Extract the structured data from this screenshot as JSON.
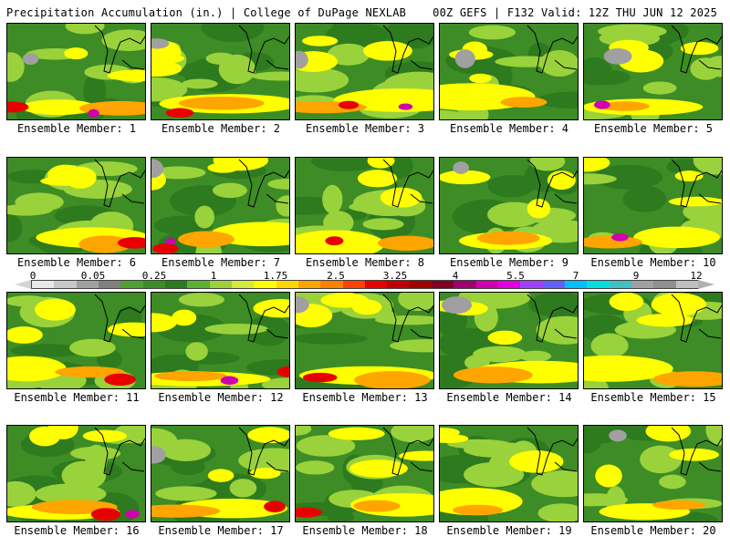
{
  "header": {
    "left": "Precipitation Accumulation (in.) | College of DuPage NEXLAB",
    "right": "00Z GEFS | F132 Valid: 12Z THU JUN 12 2025"
  },
  "members": [
    "Ensemble Member: 1",
    "Ensemble Member: 2",
    "Ensemble Member: 3",
    "Ensemble Member: 4",
    "Ensemble Member: 5",
    "Ensemble Member: 6",
    "Ensemble Member: 7",
    "Ensemble Member: 8",
    "Ensemble Member: 9",
    "Ensemble Member: 10",
    "Ensemble Member: 11",
    "Ensemble Member: 12",
    "Ensemble Member: 13",
    "Ensemble Member: 14",
    "Ensemble Member: 15",
    "Ensemble Member: 16",
    "Ensemble Member: 17",
    "Ensemble Member: 18",
    "Ensemble Member: 19",
    "Ensemble Member: 20"
  ],
  "colorbar": {
    "labels": [
      "0",
      "0.05",
      "0.25",
      "1",
      "1.75",
      "2.5",
      "3.25",
      "4",
      "5.5",
      "7",
      "9",
      "12"
    ],
    "colors": [
      "#e8e8e8",
      "#c8c8c8",
      "#a0a0a0",
      "#808080",
      "#50a030",
      "#3d8c25",
      "#2e7a1e",
      "#5cb030",
      "#9ad23c",
      "#d6ea3c",
      "#ffff00",
      "#ffd700",
      "#ffa500",
      "#ff8000",
      "#ff4000",
      "#e80000",
      "#c00000",
      "#a00000",
      "#800020",
      "#a0006e",
      "#d000b0",
      "#e000e0",
      "#a040ff",
      "#6060ff",
      "#00c0ff",
      "#00e0e0",
      "#40c0c0",
      "#a0a0a0",
      "#909090",
      "#c0c0c0"
    ]
  },
  "palette": {
    "green": "#3d8c25",
    "dark_green": "#2e7a1e",
    "light_green": "#9ad23c",
    "yellow": "#ffff00",
    "orange": "#ffa500",
    "red": "#e80000",
    "magenta": "#d000b0",
    "gray": "#a0a0a0"
  }
}
